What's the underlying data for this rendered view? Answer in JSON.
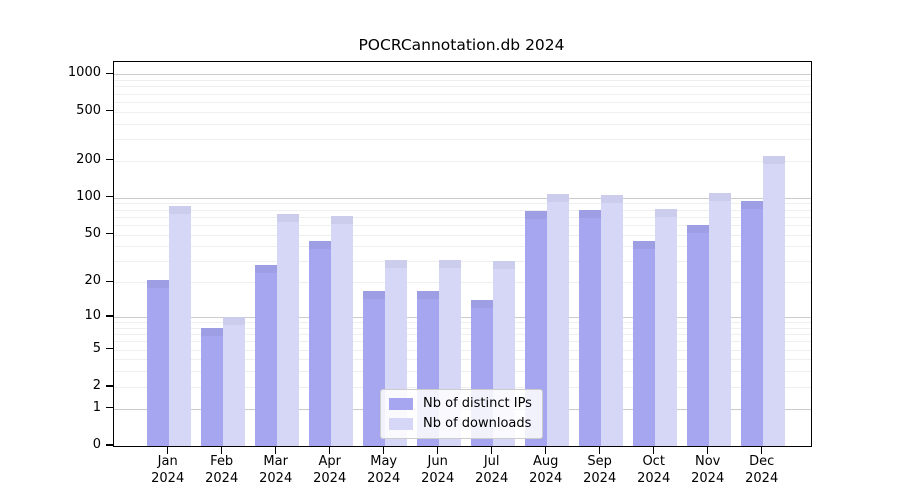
{
  "title": "POCRCannotation.db 2024",
  "chart_data": {
    "type": "bar",
    "title": "POCRCannotation.db 2024",
    "y_scale": "log-like (axis linear in log10(1+y))",
    "grid": true,
    "legend_position": "lower center",
    "months": [
      "Jan",
      "Feb",
      "Mar",
      "Apr",
      "May",
      "Jun",
      "Jul",
      "Aug",
      "Sep",
      "Oct",
      "Nov",
      "Dec"
    ],
    "year": "2024",
    "y_tick_values": [
      0,
      1,
      2,
      5,
      10,
      20,
      50,
      100,
      200,
      500,
      1000
    ],
    "y_tick_labels": [
      "0",
      "1",
      "2",
      "5",
      "10",
      "20",
      "50",
      "100",
      "200",
      "500",
      "1000"
    ],
    "ylim": [
      0,
      1260
    ],
    "series": [
      {
        "name": "Nb of distinct IPs",
        "color": "#a5a5f0",
        "values": [
          21,
          8,
          28,
          44,
          17,
          17,
          14,
          78,
          80,
          44,
          60,
          95
        ]
      },
      {
        "name": "Nb of downloads",
        "color": "#d6d6f7",
        "values": [
          85,
          10,
          74,
          71,
          31,
          31,
          30,
          108,
          105,
          81,
          110,
          218
        ]
      }
    ]
  },
  "style_colors": {
    "major_grid": "#cbcbcb",
    "minor_grid": "#efeff1",
    "axis": "#000000",
    "background": "#ffffff"
  }
}
